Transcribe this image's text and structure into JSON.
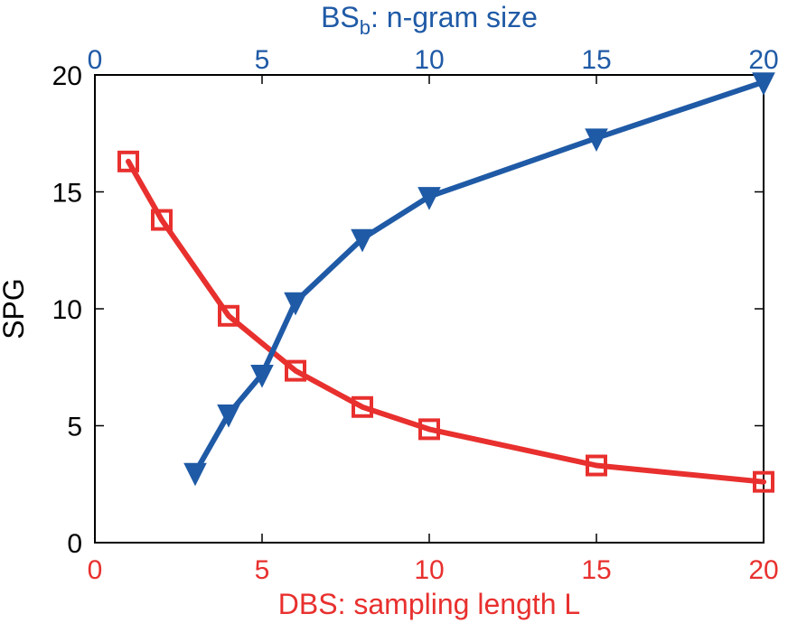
{
  "chart_data": {
    "type": "line",
    "ylabel": "SPG",
    "ylim": [
      0,
      20
    ],
    "yticks": [
      0,
      5,
      10,
      15,
      20
    ],
    "bottom_axis": {
      "label": "DBS: sampling length L",
      "lim": [
        0,
        20
      ],
      "ticks": [
        0,
        5,
        10,
        15,
        20
      ],
      "color": "#e8302e"
    },
    "top_axis": {
      "label_main": "BS",
      "label_sub": "b",
      "label_rest": ": n-gram size",
      "lim": [
        0,
        20
      ],
      "ticks": [
        0,
        5,
        10,
        15,
        20
      ],
      "color": "#1f5aa6"
    },
    "series": [
      {
        "axis": "bottom",
        "color": "#e8302e",
        "marker": "square",
        "x": [
          1,
          2,
          4,
          6,
          8,
          10,
          15,
          20
        ],
        "y": [
          16.3,
          13.8,
          9.7,
          7.35,
          5.8,
          4.85,
          3.3,
          2.6
        ]
      },
      {
        "axis": "top",
        "color": "#1f5aa6",
        "marker": "triangle-down",
        "x": [
          3,
          4,
          5,
          6,
          8,
          10,
          15,
          20
        ],
        "y": [
          3.0,
          5.5,
          7.2,
          10.3,
          13.0,
          14.8,
          17.3,
          19.7
        ]
      }
    ],
    "grid": false,
    "legend": "none"
  }
}
